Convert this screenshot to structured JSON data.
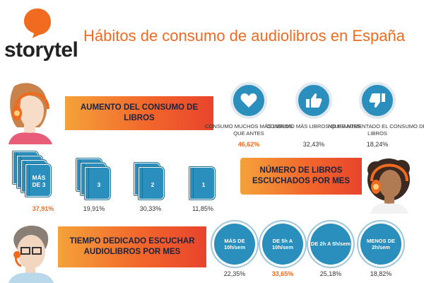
{
  "header": {
    "logo_text": "storytel",
    "title": "Hábitos de consumo de audiolibros en España"
  },
  "colors": {
    "brand_orange": "#f06a1f",
    "blue": "#2a8fbd",
    "banner_gradient": [
      "#f4a23a",
      "#f2672b",
      "#e8442c"
    ]
  },
  "section_consumption": {
    "banner": "AUMENTO DEL CONSUMO DE LIBROS",
    "items": [
      {
        "icon": "heart-icon",
        "caption": "CONSUMO MUCHOS MÁS LIBROS QUE ANTES",
        "percent": "46,62%",
        "highlight": true
      },
      {
        "icon": "thumbs-up-icon",
        "caption": "CONSUMO MÁS LIBROS QUE ANTES",
        "percent": "32,43%",
        "highlight": false
      },
      {
        "icon": "thumbs-down-icon",
        "caption": "NO HE AUMENTADO EL CONSUMO DE LIBROS",
        "percent": "18,24%",
        "highlight": false
      }
    ]
  },
  "section_books": {
    "banner": "NÚMERO DE LIBROS ESCUCHADOS POR MES",
    "items": [
      {
        "label": "MÁS DE 3",
        "percent": "37,91%",
        "highlight": true,
        "stack": 4
      },
      {
        "label": "3",
        "percent": "19,91%",
        "highlight": false,
        "stack": 3
      },
      {
        "label": "2",
        "percent": "30,33%",
        "highlight": false,
        "stack": 2
      },
      {
        "label": "1",
        "percent": "11,85%",
        "highlight": false,
        "stack": 1
      }
    ]
  },
  "section_time": {
    "banner": "TIEMPO DEDICADO ESCUCHAR AUDIOLIBROS POR MES",
    "items": [
      {
        "label": "MÁS DE 10h/sem",
        "percent": "22,35%",
        "highlight": false
      },
      {
        "label": "DE 5h A 10h/sem",
        "percent": "33,65%",
        "highlight": true
      },
      {
        "label": "DE 2h A 5h/sem",
        "percent": "25,18%",
        "highlight": false
      },
      {
        "label": "MENOS DE 2h/sem",
        "percent": "18,82%",
        "highlight": false
      }
    ]
  }
}
